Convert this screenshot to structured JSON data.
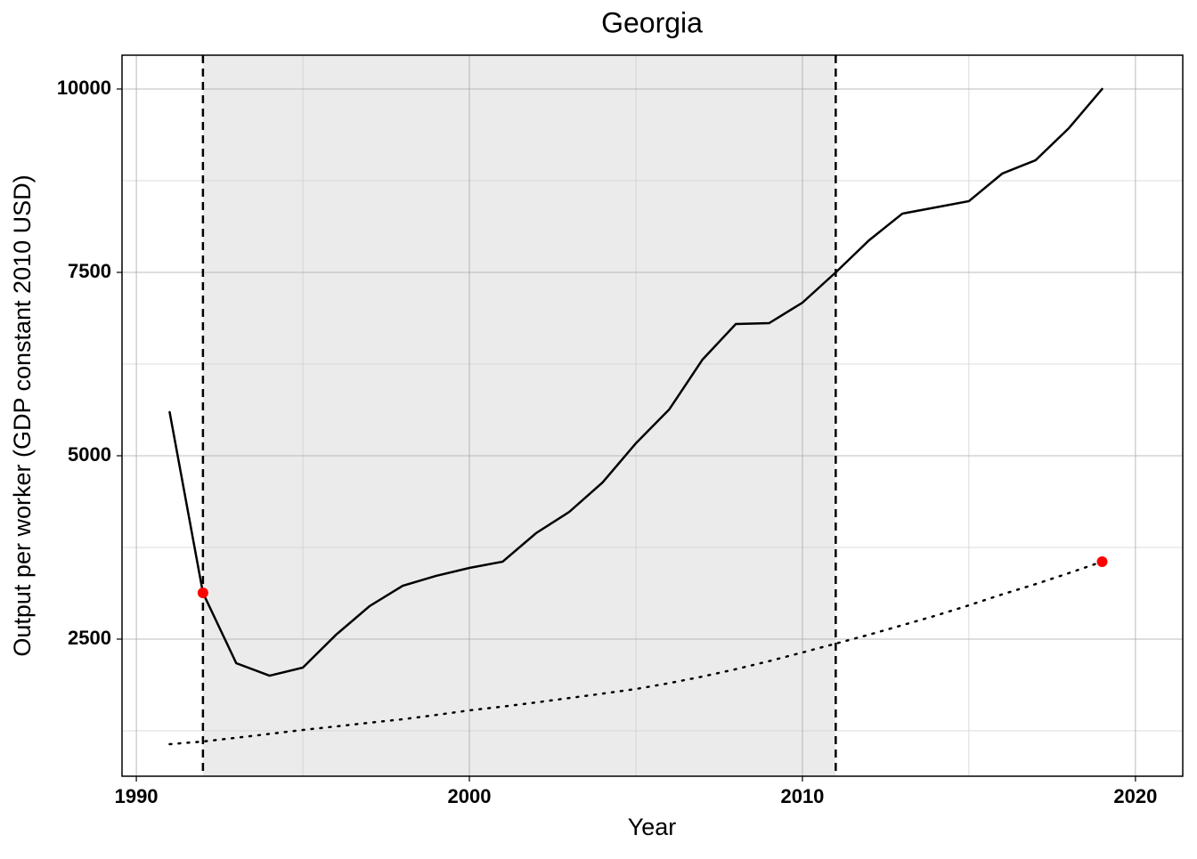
{
  "chart_data": {
    "type": "line",
    "title": "Georgia",
    "xlabel": "Year",
    "ylabel": "Output per worker (GDP constant 2010 USD)",
    "x": [
      1991,
      1992,
      1993,
      1994,
      1995,
      1996,
      1997,
      1998,
      1999,
      2000,
      2001,
      2002,
      2003,
      2004,
      2005,
      2006,
      2007,
      2008,
      2009,
      2010,
      2011,
      2012,
      2013,
      2014,
      2015,
      2016,
      2017,
      2018,
      2019
    ],
    "series": [
      {
        "color": "#000000",
        "dash": "solid",
        "values": [
          5595,
          3131,
          2172,
          2002,
          2112,
          2561,
          2949,
          3228,
          3362,
          3471,
          3556,
          3944,
          4235,
          4636,
          5170,
          5631,
          6311,
          6796,
          6808,
          7087,
          7500,
          7937,
          8301,
          8386,
          8471,
          8847,
          9029,
          9466,
          10000
        ]
      },
      {
        "color": "#000000",
        "dash": "dotted",
        "values": [
          1068,
          1104,
          1155,
          1208,
          1262,
          1310,
          1360,
          1408,
          1466,
          1529,
          1580,
          1637,
          1697,
          1757,
          1820,
          1900,
          1990,
          2090,
          2200,
          2318,
          2439,
          2560,
          2690,
          2820,
          2961,
          3110,
          3250,
          3400,
          3556
        ]
      }
    ],
    "markers": {
      "color": "#ff0000",
      "x": [
        1992,
        2019
      ],
      "values": [
        3131,
        3556
      ]
    },
    "shaded_range": [
      1992,
      2011
    ],
    "shade_color": "#ebebeb",
    "vlines": [
      1992,
      2011
    ],
    "xlim": [
      1989.57,
      2021.42
    ],
    "ylim": [
      631,
      10461
    ],
    "xticks": [
      1990,
      2000,
      2010,
      2020
    ],
    "yticks": [
      2500,
      5000,
      7500,
      10000
    ],
    "x_minor_grid": [
      1995,
      2005,
      2015
    ],
    "y_minor_grid": [
      1250,
      3750,
      6250,
      8750
    ],
    "grid": true
  }
}
